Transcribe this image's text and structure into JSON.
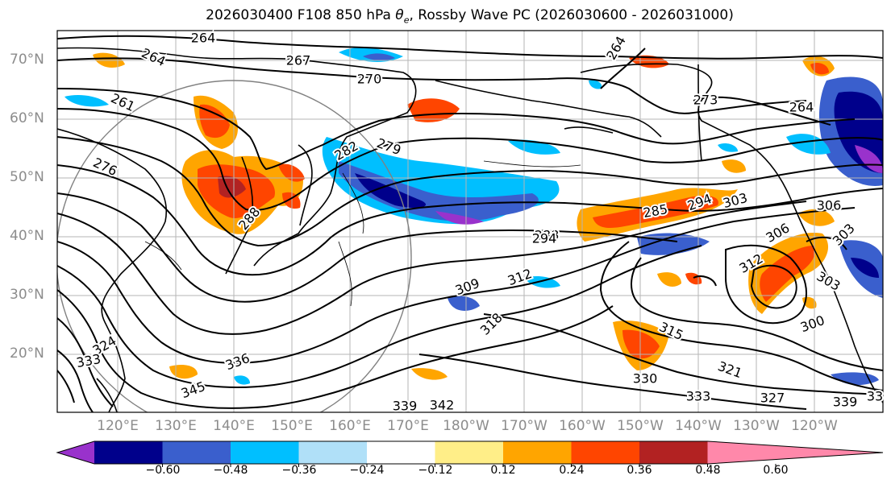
{
  "title": {
    "prefix": "2026030400 F108 850 hPa ",
    "theta": "θ",
    "sub": "e",
    "suffix": ", Rossby Wave PC (2026030600 - 2026031000)"
  },
  "lat_labels": [
    "70°N",
    "60°N",
    "50°N",
    "40°N",
    "30°N",
    "20°N"
  ],
  "lon_labels": [
    "120°E",
    "130°E",
    "140°E",
    "150°E",
    "160°E",
    "170°E",
    "180°W",
    "170°W",
    "160°W",
    "150°W",
    "140°W",
    "130°W",
    "120°W"
  ],
  "contour_labels": [
    "264",
    "264",
    "267",
    "270",
    "264",
    "261",
    "273",
    "264",
    "276",
    "282",
    "279",
    "288",
    "285",
    "294",
    "303",
    "306",
    "306",
    "303",
    "312",
    "303",
    "288",
    "294",
    "309",
    "312",
    "318",
    "315",
    "300",
    "324",
    "336",
    "330",
    "321",
    "333",
    "333",
    "327",
    "345",
    "339",
    "342",
    "339",
    "33"
  ],
  "colorbar": {
    "ticks": [
      "−0.60",
      "−0.48",
      "−0.36",
      "−0.24",
      "−0.12",
      "0.12",
      "0.24",
      "0.36",
      "0.48",
      "0.60"
    ],
    "colors": [
      "#9932cc",
      "#00008b",
      "#3a5fcd",
      "#00bfff",
      "#b0e0f8",
      "#ffffff",
      "#ffee88",
      "#ffa500",
      "#ff4500",
      "#b22222",
      "#ff88aa"
    ]
  }
}
